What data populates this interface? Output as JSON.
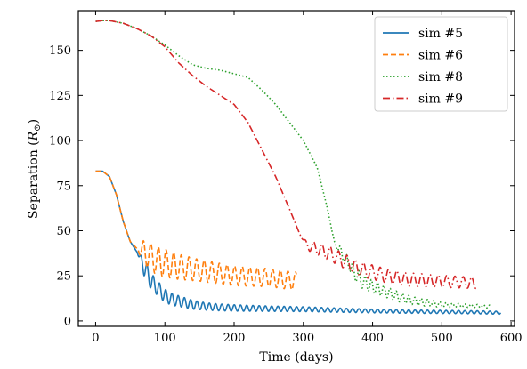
{
  "chart_data": {
    "type": "line",
    "title": "",
    "xlabel": "Time (days)",
    "ylabel": "Separation (R⊙)",
    "ylabel_parts": {
      "main": "Separation (",
      "symbol": "R",
      "subscript": "⊙",
      "close": ")"
    },
    "xlim": [
      -25,
      605
    ],
    "ylim": [
      -3,
      172
    ],
    "xticks": [
      0,
      100,
      200,
      300,
      400,
      500,
      600
    ],
    "xtick_labels": [
      "0",
      "100",
      "200",
      "300",
      "400",
      "500",
      "600"
    ],
    "yticks": [
      0,
      25,
      50,
      75,
      100,
      125,
      150
    ],
    "ytick_labels": [
      "0",
      "25",
      "50",
      "75",
      "100",
      "125",
      "150"
    ],
    "grid": false,
    "legend_position": "top-right",
    "series": [
      {
        "name": "sim #5",
        "color": "#1f77b4",
        "style": "solid",
        "points": [
          [
            0,
            83
          ],
          [
            10,
            83
          ],
          [
            20,
            80
          ],
          [
            30,
            70
          ],
          [
            40,
            55
          ],
          [
            50,
            44
          ],
          [
            60,
            38
          ],
          [
            70,
            30
          ],
          [
            80,
            22
          ],
          [
            90,
            18
          ],
          [
            100,
            14
          ],
          [
            110,
            12
          ],
          [
            120,
            11
          ],
          [
            130,
            10
          ],
          [
            140,
            9
          ],
          [
            150,
            8.5
          ],
          [
            160,
            8
          ],
          [
            180,
            7.5
          ],
          [
            200,
            7.2
          ],
          [
            250,
            6.8
          ],
          [
            300,
            6.5
          ],
          [
            350,
            6
          ],
          [
            400,
            5.5
          ],
          [
            450,
            5.2
          ],
          [
            500,
            5
          ],
          [
            550,
            4.8
          ],
          [
            585,
            4.5
          ]
        ],
        "oscillation": [
          [
            60,
            0
          ],
          [
            70,
            5
          ],
          [
            90,
            4
          ],
          [
            120,
            3
          ],
          [
            160,
            2
          ],
          [
            250,
            1.5
          ],
          [
            400,
            1
          ],
          [
            585,
            0.8
          ]
        ],
        "period": 9
      },
      {
        "name": "sim #6",
        "color": "#ff7f0e",
        "style": "dashed",
        "points": [
          [
            0,
            83
          ],
          [
            10,
            83
          ],
          [
            20,
            80
          ],
          [
            30,
            70
          ],
          [
            40,
            55
          ],
          [
            50,
            44
          ],
          [
            60,
            40
          ],
          [
            70,
            38
          ],
          [
            90,
            33
          ],
          [
            120,
            30
          ],
          [
            150,
            28
          ],
          [
            200,
            25
          ],
          [
            250,
            24
          ],
          [
            290,
            22
          ]
        ],
        "oscillation": [
          [
            60,
            0
          ],
          [
            70,
            7
          ],
          [
            90,
            8
          ],
          [
            150,
            6
          ],
          [
            250,
            5
          ],
          [
            290,
            5
          ]
        ],
        "period": 11
      },
      {
        "name": "sim #8",
        "color": "#2ca02c",
        "style": "dotted",
        "points": [
          [
            0,
            166
          ],
          [
            10,
            166.5
          ],
          [
            20,
            166.5
          ],
          [
            40,
            165
          ],
          [
            60,
            162
          ],
          [
            80,
            158
          ],
          [
            100,
            153
          ],
          [
            120,
            147
          ],
          [
            140,
            142
          ],
          [
            160,
            140
          ],
          [
            180,
            139
          ],
          [
            200,
            137
          ],
          [
            220,
            135
          ],
          [
            240,
            128
          ],
          [
            260,
            120
          ],
          [
            280,
            110
          ],
          [
            300,
            100
          ],
          [
            320,
            85
          ],
          [
            335,
            62
          ],
          [
            345,
            43
          ],
          [
            355,
            38
          ],
          [
            365,
            32
          ],
          [
            375,
            26
          ],
          [
            385,
            22
          ],
          [
            400,
            19
          ],
          [
            420,
            16
          ],
          [
            440,
            13
          ],
          [
            460,
            11
          ],
          [
            480,
            10
          ],
          [
            500,
            9
          ],
          [
            530,
            8.5
          ],
          [
            570,
            8
          ]
        ],
        "oscillation": [
          [
            340,
            0
          ],
          [
            355,
            3
          ],
          [
            380,
            4
          ],
          [
            420,
            3
          ],
          [
            470,
            2
          ],
          [
            520,
            1
          ],
          [
            570,
            0.8
          ]
        ],
        "period": 9
      },
      {
        "name": "sim #9",
        "color": "#d62728",
        "style": "dashdot",
        "points": [
          [
            0,
            166
          ],
          [
            10,
            166.5
          ],
          [
            20,
            166.5
          ],
          [
            40,
            165
          ],
          [
            60,
            162
          ],
          [
            80,
            158
          ],
          [
            100,
            152
          ],
          [
            120,
            143
          ],
          [
            140,
            136
          ],
          [
            160,
            130
          ],
          [
            180,
            125
          ],
          [
            200,
            120
          ],
          [
            220,
            110
          ],
          [
            240,
            95
          ],
          [
            260,
            80
          ],
          [
            280,
            62
          ],
          [
            295,
            48
          ],
          [
            305,
            42
          ],
          [
            320,
            40
          ],
          [
            340,
            37
          ],
          [
            360,
            33
          ],
          [
            380,
            29
          ],
          [
            400,
            27
          ],
          [
            420,
            25
          ],
          [
            450,
            23
          ],
          [
            500,
            22
          ],
          [
            550,
            21
          ]
        ],
        "oscillation": [
          [
            295,
            0
          ],
          [
            310,
            3
          ],
          [
            340,
            4
          ],
          [
            400,
            4
          ],
          [
            550,
            3
          ]
        ],
        "period": 12
      }
    ]
  }
}
